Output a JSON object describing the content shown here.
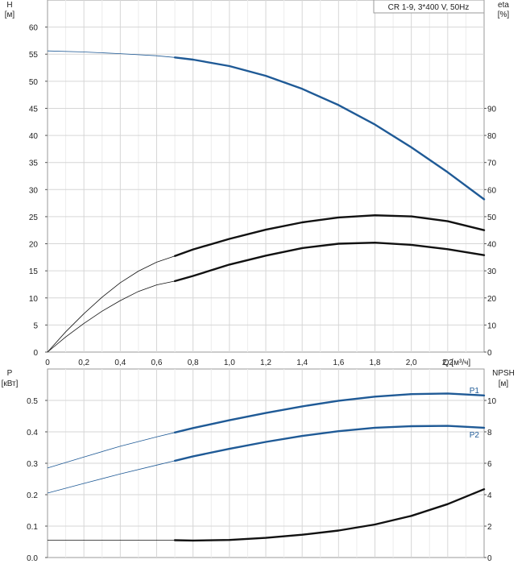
{
  "chart_data": [
    {
      "type": "line",
      "panel": "head-and-efficiency",
      "title": "CR 1-9, 3*400 V, 50Hz",
      "x_axis": {
        "label": "Q [м³/ч]",
        "min": 0,
        "max": 2.4,
        "ticks": [
          0,
          0.2,
          0.4,
          0.6,
          0.8,
          1.0,
          1.2,
          1.4,
          1.6,
          1.8,
          2.0,
          2.2
        ],
        "tick_labels": [
          "0",
          "0,2",
          "0,4",
          "0,6",
          "0,8",
          "1,0",
          "1,2",
          "1,4",
          "1,6",
          "1,8",
          "2,0",
          "2,2"
        ]
      },
      "y_left": {
        "label_top": "H",
        "label_unit": "[м]",
        "min": 0,
        "max": 65,
        "ticks": [
          0,
          5,
          10,
          15,
          20,
          25,
          30,
          35,
          40,
          45,
          50,
          55,
          60
        ]
      },
      "y_right": {
        "label_top": "eta",
        "label_unit": "[%]",
        "min": 0,
        "max": 130,
        "ticks": [
          0,
          10,
          20,
          30,
          40,
          50,
          60,
          70,
          80,
          90
        ]
      },
      "grid": true,
      "series": [
        {
          "key": "H",
          "axis": "left",
          "color": "#1f5a96",
          "x": [
            0,
            0.2,
            0.4,
            0.6,
            0.7,
            0.8,
            1.0,
            1.2,
            1.4,
            1.6,
            1.8,
            2.0,
            2.2,
            2.4
          ],
          "y": [
            55.6,
            55.4,
            55.1,
            54.7,
            54.4,
            54.0,
            52.8,
            51.0,
            48.6,
            45.6,
            42.0,
            37.8,
            33.2,
            28.2
          ],
          "operating_from_x": 0.7
        },
        {
          "key": "eta_upper",
          "axis": "right",
          "color": "#111111",
          "x": [
            0,
            0.1,
            0.2,
            0.3,
            0.4,
            0.5,
            0.6,
            0.7,
            0.8,
            1.0,
            1.2,
            1.4,
            1.6,
            1.8,
            2.0,
            2.2,
            2.4
          ],
          "y": [
            0,
            7.5,
            14.2,
            20.3,
            25.6,
            29.9,
            33.2,
            35.5,
            37.9,
            41.8,
            45.2,
            47.9,
            49.7,
            50.5,
            50.1,
            48.3,
            45.0
          ],
          "operating_from_x": 0.7
        },
        {
          "key": "eta_lower",
          "axis": "right",
          "color": "#111111",
          "x": [
            0,
            0.1,
            0.2,
            0.3,
            0.4,
            0.5,
            0.6,
            0.7,
            0.8,
            1.0,
            1.2,
            1.4,
            1.6,
            1.8,
            2.0,
            2.2,
            2.4
          ],
          "y": [
            0,
            5.6,
            10.6,
            15.1,
            19.0,
            22.4,
            24.8,
            26.2,
            28.1,
            32.3,
            35.6,
            38.4,
            40.0,
            40.4,
            39.6,
            38.0,
            35.8
          ],
          "operating_from_x": 0.7
        }
      ]
    },
    {
      "type": "line",
      "panel": "power-and-npsh",
      "x_axis": {
        "min": 0,
        "max": 2.4,
        "ticks": [
          0,
          0.2,
          0.4,
          0.6,
          0.8,
          1.0,
          1.2,
          1.4,
          1.6,
          1.8,
          2.0,
          2.2
        ]
      },
      "y_left": {
        "label_top": "P",
        "label_unit": "[кВт]",
        "min": 0,
        "max": 0.6,
        "ticks": [
          0.0,
          0.1,
          0.2,
          0.3,
          0.4,
          0.5
        ],
        "tick_labels": [
          "0.0",
          "0.1",
          "0.2",
          "0.3",
          "0.4",
          "0.5"
        ]
      },
      "y_right": {
        "label_top": "NPSH",
        "label_unit": "[м]",
        "min": 0,
        "max": 12,
        "ticks": [
          0,
          2,
          4,
          6,
          8,
          10
        ]
      },
      "grid": true,
      "series": [
        {
          "name": "P1",
          "axis": "left",
          "color": "#1f5a96",
          "x": [
            0,
            0.2,
            0.4,
            0.6,
            0.7,
            0.8,
            1.0,
            1.2,
            1.4,
            1.6,
            1.8,
            2.0,
            2.2,
            2.4
          ],
          "y": [
            0.285,
            0.32,
            0.354,
            0.384,
            0.398,
            0.412,
            0.437,
            0.46,
            0.481,
            0.499,
            0.512,
            0.52,
            0.522,
            0.516
          ],
          "operating_from_x": 0.7
        },
        {
          "name": "P2",
          "axis": "left",
          "color": "#1f5a96",
          "x": [
            0,
            0.2,
            0.4,
            0.6,
            0.7,
            0.8,
            1.0,
            1.2,
            1.4,
            1.6,
            1.8,
            2.0,
            2.2,
            2.4
          ],
          "y": [
            0.205,
            0.236,
            0.266,
            0.294,
            0.308,
            0.322,
            0.346,
            0.368,
            0.387,
            0.402,
            0.413,
            0.418,
            0.419,
            0.413
          ],
          "operating_from_x": 0.7
        },
        {
          "key": "NPSH",
          "axis": "right",
          "color": "#111111",
          "x": [
            0,
            0.2,
            0.4,
            0.6,
            0.7,
            0.8,
            1.0,
            1.2,
            1.4,
            1.6,
            1.8,
            2.0,
            2.2,
            2.4
          ],
          "y": [
            1.1,
            1.1,
            1.1,
            1.1,
            1.1,
            1.08,
            1.12,
            1.25,
            1.45,
            1.72,
            2.1,
            2.65,
            3.4,
            4.35
          ],
          "operating_from_x": 0.7
        }
      ]
    }
  ]
}
